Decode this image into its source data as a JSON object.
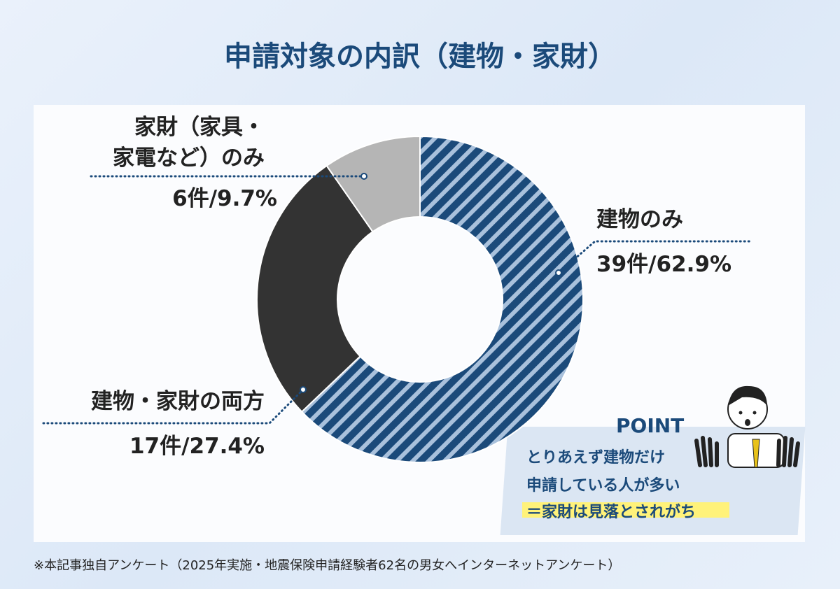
{
  "chart_data": {
    "type": "pie",
    "donut": true,
    "title": "申請対象の内訳（建物・家財）",
    "categories": [
      "建物のみ",
      "建物・家財の両方",
      "家財（家具・\n家電など）のみ"
    ],
    "values": [
      62.9,
      27.4,
      9.7
    ],
    "value_labels": [
      "39件/62.9%",
      "17件/27.4%",
      "6件/9.7%"
    ],
    "colors": [
      "#1b4a7a",
      "#333333",
      "#b5b5b5"
    ],
    "hatched": [
      true,
      false,
      false
    ],
    "hatch_color": "#a9c1dc",
    "footnote": "※本記事独自アンケート（2025年実施・地震保険申請経験者62名の男女へインターネットアンケート）",
    "point": {
      "heading": "POINT",
      "lines": [
        "とりあえず建物だけ",
        "申請している人が多い",
        "＝家財は見落とされがち"
      ]
    }
  }
}
